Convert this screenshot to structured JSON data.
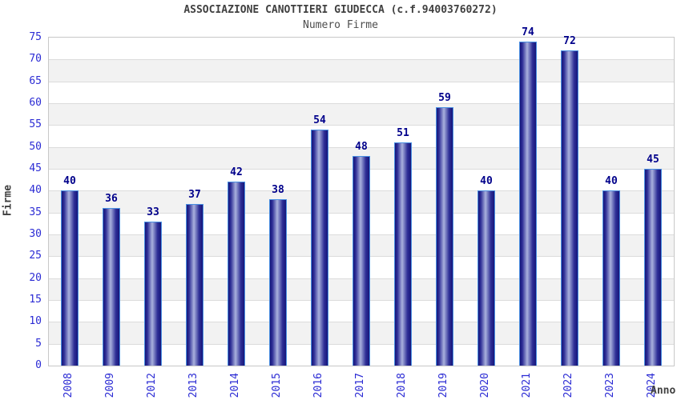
{
  "header": {
    "title": "ASSOCIAZIONE CANOTTIERI GIUDECCA (c.f.94003760272)",
    "subtitle": "Numero Firme"
  },
  "chart_data": {
    "type": "bar",
    "title": "ASSOCIAZIONE CANOTTIERI GIUDECCA (c.f.94003760272)",
    "subtitle": "Numero Firme",
    "categories": [
      "2008",
      "2009",
      "2012",
      "2013",
      "2014",
      "2015",
      "2016",
      "2017",
      "2018",
      "2019",
      "2020",
      "2021",
      "2022",
      "2023",
      "2024"
    ],
    "values": [
      40,
      36,
      33,
      37,
      42,
      38,
      54,
      48,
      51,
      59,
      40,
      74,
      72,
      40,
      45
    ],
    "xlabel": "Anno",
    "ylabel": "Firme",
    "ylim": [
      0,
      75
    ],
    "ytick_step": 5,
    "grid": true,
    "legend": "none",
    "colors": {
      "band_white": "#ffffff",
      "band_gray": "#f2f2f2",
      "gridline": "#dcdcdc",
      "plot_border": "#c8c8c8",
      "bar_dark": "#16167a",
      "bar_mid": "#2e2e96",
      "bar_light": "#a9b1dd",
      "bar_border": "#4a90e2",
      "value_label": "#00008b",
      "tick_label": "#2b2bd4",
      "title_text": "#404040"
    }
  }
}
